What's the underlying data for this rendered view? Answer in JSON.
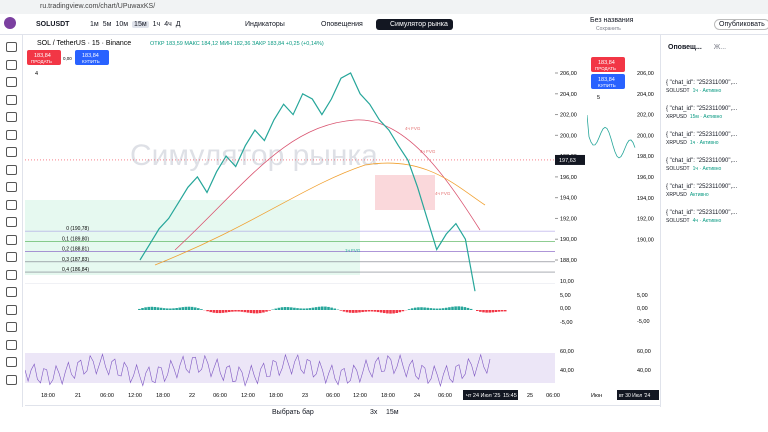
{
  "browser": {
    "url": "ru.tradingview.com/chart/UPuwaxKS/"
  },
  "toolbar": {
    "symbol": "SOLUSDT",
    "intervals": [
      "1м",
      "5м",
      "10м",
      "15м",
      "1ч",
      "4ч",
      "Д"
    ],
    "indicators": "Индикаторы",
    "alerts": "Оповещения",
    "simulator": "Симулятор рынка",
    "layout_name": "Без названия",
    "saved": "Сохранить",
    "publish": "Опубликовать"
  },
  "chart": {
    "title": "SOL / TetherUS · 15 · Binance",
    "ohlc": "ОТКР 183,59 МАКС 184,12 МИН 182,36 ЗАКР 183,84 +0,25 (+0,14%)",
    "sell_price": "183,84",
    "sell": "ПРОДАТЬ",
    "spread": "0,00",
    "buy_price": "183,84",
    "buy": "КУПИТЬ",
    "indicator_count": "4",
    "watermark": "Симулятор рынка",
    "price_ticks": [
      {
        "value": 206,
        "label": "206,00"
      },
      {
        "value": 204,
        "label": "204,00"
      },
      {
        "value": 202,
        "label": "202,00"
      },
      {
        "value": 200,
        "label": "200,00"
      },
      {
        "value": 198,
        "label": "198,00"
      },
      {
        "value": 196,
        "label": "196,00"
      },
      {
        "value": 194,
        "label": "194,00"
      },
      {
        "value": 192,
        "label": "192,00"
      },
      {
        "value": 190,
        "label": "190,00"
      },
      {
        "value": 188,
        "label": "188,00"
      }
    ],
    "current_price": {
      "value": 197.63,
      "label": "197,63"
    },
    "fib_levels": [
      {
        "value": 190.78,
        "label": "0 (190,78)"
      },
      {
        "value": 189.8,
        "label": "0,1 (189,80)"
      },
      {
        "value": 188.81,
        "label": "0,2 (188,81)"
      },
      {
        "value": 187.83,
        "label": "0,3 (187,83)"
      },
      {
        "value": 186.84,
        "label": "0,4 (186,84)"
      }
    ],
    "zone_labels": [
      "4ч FVG",
      "4ч FVG",
      "4ч FVG",
      "1ч FVG"
    ],
    "closes": [
      188,
      189.5,
      191,
      192,
      193.5,
      195,
      196,
      194.5,
      196.5,
      198,
      197,
      199,
      200.5,
      199.5,
      201.5,
      203,
      202,
      204,
      203.5,
      202,
      203.5,
      205.5,
      206,
      204,
      203,
      201.5,
      200.5,
      199,
      197.6,
      195,
      192,
      189,
      190.5,
      191.5,
      190,
      185
    ],
    "osc_ticks": [
      "10,00",
      "5,00",
      "0,00",
      "-5,00"
    ],
    "rsi_ticks": [
      "60,00",
      "40,00"
    ],
    "time_ticks": [
      "18:00",
      "21",
      "06:00",
      "12:00",
      "18:00",
      "22",
      "06:00",
      "12:00",
      "18:00",
      "23",
      "06:00",
      "12:00",
      "18:00",
      "24",
      "06:00",
      "25",
      "06:00"
    ],
    "cursor_time": "чт 24 Июл '25",
    "cursor_clock": "15:45"
  },
  "replay": {
    "select_bar": "Выбрать бар",
    "speed": "3x",
    "interval": "15м"
  },
  "side_chart": {
    "sell_price": "183,84",
    "sell": "ПРОДАТЬ",
    "buy_price": "183,84",
    "buy": "КУПИТЬ",
    "indicator_count": "5",
    "price_ticks": [
      "206,00",
      "204,00",
      "202,00",
      "200,00",
      "198,00",
      "196,00",
      "194,00",
      "192,00",
      "190,00"
    ],
    "osc_ticks": [
      "5,00",
      "0,00",
      "-5,00"
    ],
    "rsi_ticks": [
      "60,00",
      "40,00"
    ],
    "time_tick": "Июн",
    "cursor_time": "вт 30 Июл '24"
  },
  "alerts_panel": {
    "tabs": [
      "Оповещ...",
      "Ж..."
    ],
    "items": [
      {
        "title": "{ \"chat_id\": \"252311090\",...",
        "symbol": "SOLUSDT",
        "detail": "1ч · Активно"
      },
      {
        "title": "{ \"chat_id\": \"252311090\",...",
        "symbol": "XRPUSD",
        "detail": "15м · Активно"
      },
      {
        "title": "{ \"chat_id\": \"252311090\",...",
        "symbol": "XRPUSD",
        "detail": "1ч · Активно"
      },
      {
        "title": "{ \"chat_id\": \"252311090\",...",
        "symbol": "SOLUSDT",
        "detail": "1ч · Активно"
      },
      {
        "title": "{ \"chat_id\": \"252311090\",...",
        "symbol": "XRPUSD",
        "detail": "Активно"
      },
      {
        "title": "{ \"chat_id\": \"252311090\",...",
        "symbol": "SOLUSDT",
        "detail": "4ч · Активно"
      }
    ]
  }
}
